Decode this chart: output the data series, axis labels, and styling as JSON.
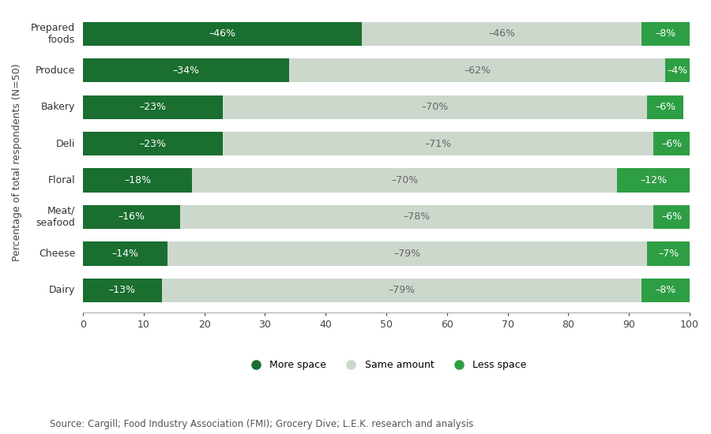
{
  "categories": [
    "Prepared\nfoods",
    "Produce",
    "Bakery",
    "Deli",
    "Floral",
    "Meat/\nseafood",
    "Cheese",
    "Dairy"
  ],
  "more_space": [
    46,
    34,
    23,
    23,
    18,
    16,
    14,
    13
  ],
  "same_amount": [
    46,
    62,
    70,
    71,
    70,
    78,
    79,
    79
  ],
  "less_space": [
    8,
    4,
    6,
    6,
    12,
    6,
    7,
    8
  ],
  "more_labels": [
    "–46%",
    "–34%",
    "–23%",
    "–23%",
    "–18%",
    "–16%",
    "–14%",
    "–13%"
  ],
  "same_labels": [
    "–46%",
    "–62%",
    "–70%",
    "–71%",
    "–70%",
    "–78%",
    "–79%",
    "–79%"
  ],
  "less_labels": [
    "–8%",
    "–4%",
    "–6%",
    "–6%",
    "–12%",
    "–6%",
    "–7%",
    "–8%"
  ],
  "color_more": "#1a6e30",
  "color_same": "#cdd8cd",
  "color_less": "#2e9e44",
  "ylabel": "Percentage of total respondents (N=50)",
  "xlabel_ticks": [
    0,
    10,
    20,
    30,
    40,
    50,
    60,
    70,
    80,
    90,
    100
  ],
  "source": "Source: Cargill; Food Industry Association (FMI); Grocery Dive; L.E.K. research and analysis",
  "legend_labels": [
    "More space",
    "Same amount",
    "Less space"
  ],
  "bg_color": "#ffffff",
  "bar_height": 0.65,
  "label_fontsize": 9,
  "tick_fontsize": 9,
  "source_fontsize": 8.5
}
